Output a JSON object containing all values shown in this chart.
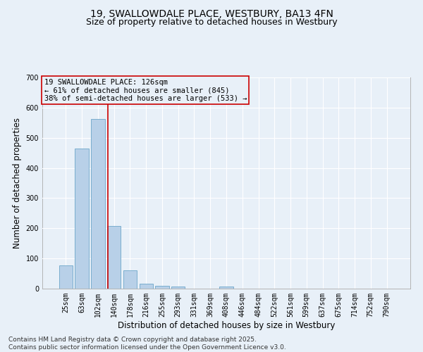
{
  "title_line1": "19, SWALLOWDALE PLACE, WESTBURY, BA13 4FN",
  "title_line2": "Size of property relative to detached houses in Westbury",
  "xlabel": "Distribution of detached houses by size in Westbury",
  "ylabel": "Number of detached properties",
  "categories": [
    "25sqm",
    "63sqm",
    "102sqm",
    "140sqm",
    "178sqm",
    "216sqm",
    "255sqm",
    "293sqm",
    "331sqm",
    "369sqm",
    "408sqm",
    "446sqm",
    "484sqm",
    "522sqm",
    "561sqm",
    "599sqm",
    "637sqm",
    "675sqm",
    "714sqm",
    "752sqm",
    "790sqm"
  ],
  "values": [
    78,
    465,
    562,
    207,
    60,
    17,
    10,
    8,
    0,
    0,
    8,
    0,
    0,
    0,
    0,
    0,
    0,
    0,
    0,
    0,
    0
  ],
  "bar_color": "#b8d0e8",
  "bar_edgecolor": "#7aaece",
  "bar_linewidth": 0.7,
  "subject_line_color": "#cc0000",
  "annotation_text": "19 SWALLOWDALE PLACE: 126sqm\n← 61% of detached houses are smaller (845)\n38% of semi-detached houses are larger (533) →",
  "annotation_box_edgecolor": "#cc0000",
  "annotation_fontsize": 7.5,
  "ylim": [
    0,
    700
  ],
  "yticks": [
    0,
    100,
    200,
    300,
    400,
    500,
    600,
    700
  ],
  "background_color": "#e8f0f8",
  "grid_color": "#ffffff",
  "footer_line1": "Contains HM Land Registry data © Crown copyright and database right 2025.",
  "footer_line2": "Contains public sector information licensed under the Open Government Licence v3.0.",
  "title_fontsize": 10,
  "subtitle_fontsize": 9,
  "axis_label_fontsize": 8.5,
  "tick_fontsize": 7,
  "footer_fontsize": 6.5
}
